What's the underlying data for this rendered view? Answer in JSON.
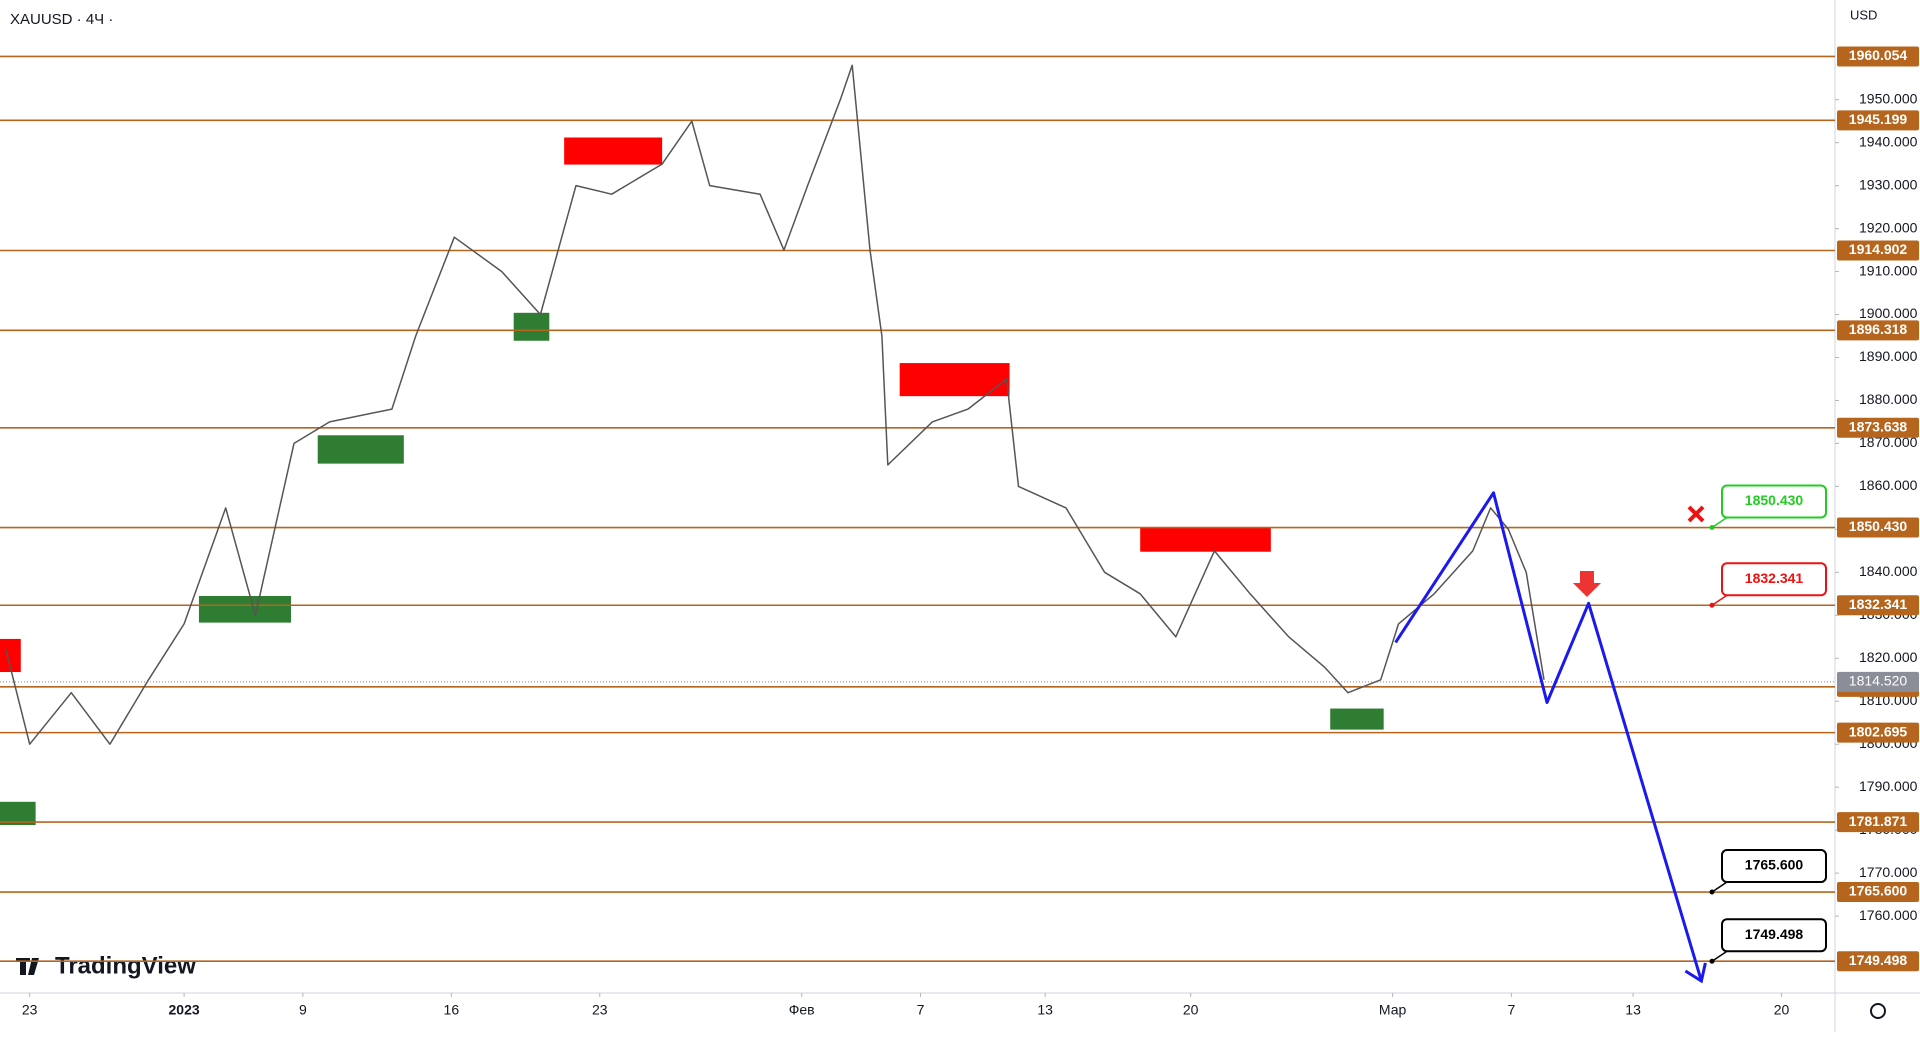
{
  "chart_data": {
    "type": "line",
    "title": "XAUUSD · 4Ч ·",
    "currency": "USD",
    "brand": "TradingView",
    "x": [
      -0.8,
      0,
      1.4,
      2.7,
      4.0,
      5.2,
      6.6,
      7.6,
      8.9,
      10.1,
      12.2,
      13.0,
      14.3,
      15.9,
      17.2,
      18.4,
      19.6,
      21.3,
      22.3,
      22.9,
      24.6,
      25.4,
      26.2,
      27.3,
      27.7,
      28.3,
      28.7,
      28.9,
      30.4,
      31.6,
      32.9,
      33.3,
      34.9,
      36.2,
      37.4,
      38.6,
      39.9,
      41.1,
      42.4,
      43.6,
      44.4,
      45.5,
      46.1,
      47.3,
      48.6,
      49.2,
      49.8,
      50.4,
      51.0
    ],
    "series": [
      {
        "color": "#555555",
        "values": [
          1822,
          1800,
          1812,
          1800,
          1815,
          1828,
          1855,
          1830,
          1870,
          1875,
          1878,
          1895,
          1918,
          1910,
          1900,
          1930,
          1928,
          1935,
          1945,
          1930,
          1928,
          1915,
          1930,
          1950,
          1958,
          1915,
          1895,
          1865,
          1875,
          1878,
          1885,
          1860,
          1855,
          1840,
          1835,
          1825,
          1845,
          1835,
          1825,
          1818,
          1812,
          1815,
          1828,
          1835,
          1845,
          1855,
          1850,
          1840,
          1815
        ]
      }
    ],
    "forecast": {
      "color": "#1a1aee",
      "x": [
        46.0,
        49.3,
        51.1,
        52.5,
        56.3
      ],
      "values": [
        1823.7,
        1858.5,
        1809.7,
        1832.8,
        1744.9
      ]
    },
    "levels_color": "#b5651d",
    "levels": [
      1960.054,
      1945.199,
      1914.902,
      1896.318,
      1873.638,
      {
        "value": 1850.43,
        "label": "1850.430"
      },
      1832.341,
      1813.349,
      1802.695,
      1781.871,
      {
        "value": 1765.6,
        "label": "1765.600"
      },
      1749.498
    ],
    "callouts": [
      {
        "level": 5,
        "color": "#22cc22"
      },
      {
        "level": 6,
        "color": "#ee1111"
      },
      {
        "level": 10,
        "color": "#000000"
      },
      {
        "level": 11,
        "color": "#000000"
      }
    ],
    "last_price": {
      "value": 1814.52,
      "label": "1814.520"
    },
    "zones": [
      {
        "x": [
          18.0,
          21.3
        ],
        "y": [
          1934.9,
          1941.2
        ],
        "color": "#ff0000"
      },
      {
        "x": [
          29.3,
          33.0
        ],
        "y": [
          1881.0,
          1888.7
        ],
        "color": "#ff0000"
      },
      {
        "x": [
          37.4,
          41.8
        ],
        "y": [
          1844.8,
          1850.5
        ],
        "color": "#ff0000"
      },
      {
        "x": [
          -1.0,
          -0.3
        ],
        "y": [
          1816.8,
          1824.5
        ],
        "color": "#ff0000"
      },
      {
        "x": [
          9.7,
          12.6
        ],
        "y": [
          1865.3,
          1871.9
        ],
        "color": "#2e7d32"
      },
      {
        "x": [
          5.7,
          8.8
        ],
        "y": [
          1828.3,
          1834.5
        ],
        "color": "#2e7d32"
      },
      {
        "x": [
          16.3,
          17.5
        ],
        "y": [
          1893.9,
          1900.4
        ],
        "color": "#2e7d32"
      },
      {
        "x": [
          43.8,
          45.6
        ],
        "y": [
          1803.4,
          1808.3
        ],
        "color": "#2e7d32"
      },
      {
        "x": [
          -1.0,
          0.2
        ],
        "y": [
          1781.2,
          1786.6
        ],
        "color": "#2e7d32"
      }
    ],
    "xlim": [
      -1.0,
      60.8
    ],
    "ylim": [
      1742.1,
      1973.2
    ],
    "xticks": [
      {
        "value": 0,
        "label": "23"
      },
      {
        "value": 5.2,
        "label": "2023"
      },
      {
        "value": 9.2,
        "label": "9"
      },
      {
        "value": 14.2,
        "label": "16"
      },
      {
        "value": 19.2,
        "label": "23"
      },
      {
        "value": 26,
        "label": "Фев"
      },
      {
        "value": 30,
        "label": "7"
      },
      {
        "value": 34.2,
        "label": "13"
      },
      {
        "value": 39.1,
        "label": "20"
      },
      {
        "value": 45.9,
        "label": "Мар"
      },
      {
        "value": 49.9,
        "label": "7"
      },
      {
        "value": 54,
        "label": "13"
      },
      {
        "value": 59,
        "label": "20"
      }
    ],
    "yticks": [
      {
        "value": 1760,
        "label": "1760.000"
      },
      {
        "value": 1770,
        "label": "1770.000"
      },
      {
        "value": 1780,
        "label": "1780.000"
      },
      {
        "value": 1790,
        "label": "1790.000"
      },
      {
        "value": 1800,
        "label": "1800.000"
      },
      {
        "value": 1810,
        "label": "1810.000"
      },
      {
        "value": 1820,
        "label": "1820.000"
      },
      {
        "value": 1830,
        "label": "1830.000"
      },
      {
        "value": 1840,
        "label": "1840.000"
      },
      {
        "value": 1850,
        "label": "1850.000"
      },
      {
        "value": 1860,
        "label": "1860.000"
      },
      {
        "value": 1870,
        "label": "1870.000"
      },
      {
        "value": 1880,
        "label": "1880.000"
      },
      {
        "value": 1890,
        "label": "1890.000"
      },
      {
        "value": 1900,
        "label": "1900.000"
      },
      {
        "value": 1910,
        "label": "1910.000"
      },
      {
        "value": 1920,
        "label": "1920.000"
      },
      {
        "value": 1930,
        "label": "1930.000"
      },
      {
        "value": 1940,
        "label": "1940.000"
      },
      {
        "value": 1950,
        "label": "1950.000"
      }
    ]
  }
}
